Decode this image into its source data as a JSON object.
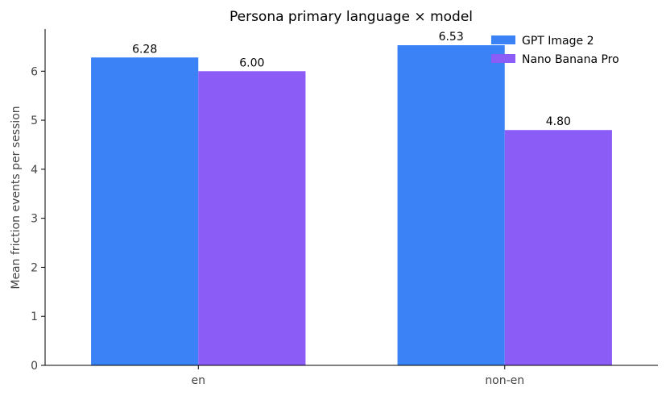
{
  "chart_data": {
    "type": "bar",
    "title": "Persona primary language × model",
    "xlabel": "",
    "ylabel": "Mean friction events per session",
    "categories": [
      "en",
      "non-en"
    ],
    "series": [
      {
        "name": "GPT Image 2",
        "values": [
          6.28,
          6.53
        ],
        "color": "#3b82f6",
        "labels": [
          "6.28",
          "6.53"
        ]
      },
      {
        "name": "Nano Banana Pro",
        "values": [
          6.0,
          4.8
        ],
        "color": "#8b5cf6",
        "labels": [
          "6.00",
          "4.80"
        ]
      }
    ],
    "ylim": [
      0,
      6.86
    ],
    "yticks": [
      0,
      1,
      2,
      3,
      4,
      5,
      6
    ],
    "grid": false,
    "legend": "top-right"
  }
}
